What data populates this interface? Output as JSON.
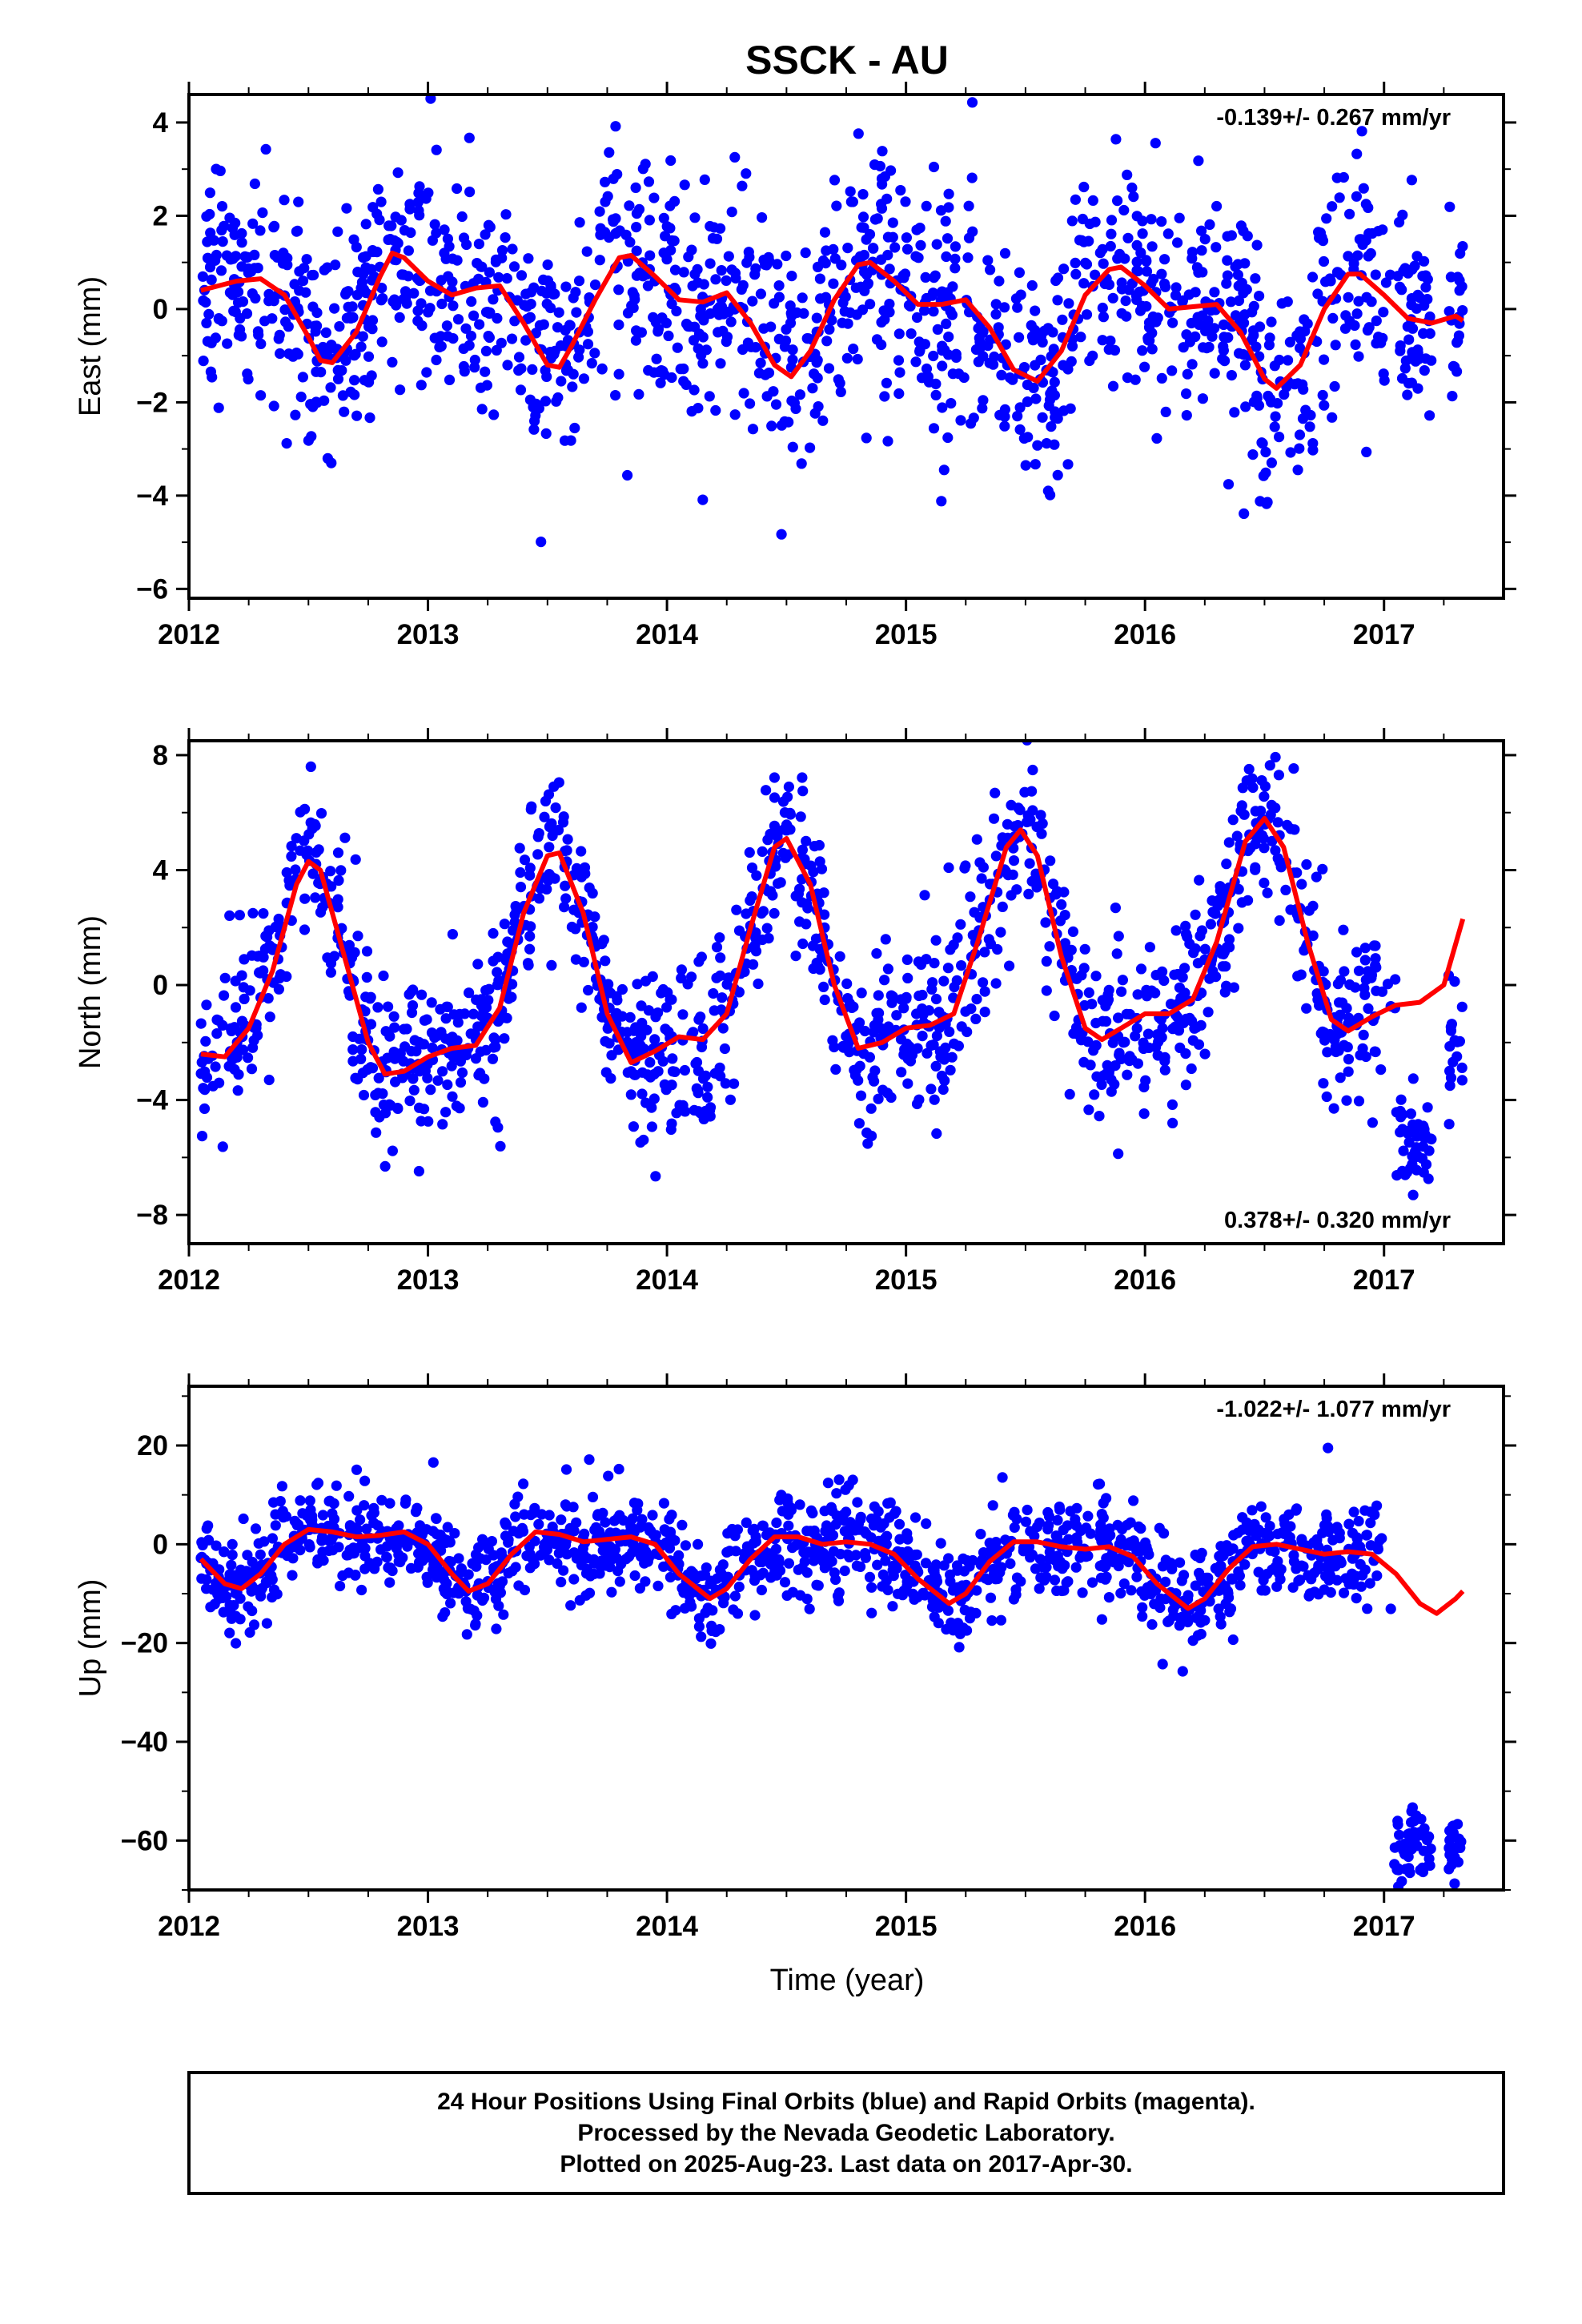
{
  "header": {
    "title": "SSCK - AU"
  },
  "colors": {
    "points": "#0000ff",
    "fit": "#ff0000",
    "frame": "#000000"
  },
  "chart_data": [
    {
      "type": "scatter",
      "ylabel": "East (mm)",
      "xlabel": "",
      "xlim": [
        2012,
        2017.5
      ],
      "ylim": [
        -6.2,
        4.6
      ],
      "xticks": [
        "2012",
        "2013",
        "2014",
        "2015",
        "2016",
        "2017"
      ],
      "yticks": [
        4,
        2,
        0,
        -2,
        -4,
        -6
      ],
      "yticklabels": [
        "4",
        "2",
        "0",
        "−2",
        "−4",
        "−6"
      ],
      "rate_label": "-0.139+/- 0.267 mm/yr",
      "rate_position": "top-right",
      "fit_curve": [
        [
          2012.05,
          0.4
        ],
        [
          2012.2,
          0.6
        ],
        [
          2012.3,
          0.65
        ],
        [
          2012.4,
          0.3
        ],
        [
          2012.5,
          -0.6
        ],
        [
          2012.55,
          -1.1
        ],
        [
          2012.6,
          -1.15
        ],
        [
          2012.7,
          -0.5
        ],
        [
          2012.8,
          0.7
        ],
        [
          2012.85,
          1.2
        ],
        [
          2012.9,
          1.1
        ],
        [
          2013.0,
          0.6
        ],
        [
          2013.1,
          0.3
        ],
        [
          2013.2,
          0.45
        ],
        [
          2013.3,
          0.5
        ],
        [
          2013.4,
          -0.3
        ],
        [
          2013.5,
          -1.2
        ],
        [
          2013.55,
          -1.25
        ],
        [
          2013.6,
          -0.8
        ],
        [
          2013.7,
          0.2
        ],
        [
          2013.8,
          1.1
        ],
        [
          2013.85,
          1.15
        ],
        [
          2013.95,
          0.7
        ],
        [
          2014.05,
          0.2
        ],
        [
          2014.15,
          0.15
        ],
        [
          2014.25,
          0.35
        ],
        [
          2014.35,
          -0.3
        ],
        [
          2014.45,
          -1.2
        ],
        [
          2014.52,
          -1.45
        ],
        [
          2014.6,
          -0.9
        ],
        [
          2014.7,
          0.2
        ],
        [
          2014.8,
          0.95
        ],
        [
          2014.85,
          1.0
        ],
        [
          2014.95,
          0.6
        ],
        [
          2015.05,
          0.1
        ],
        [
          2015.15,
          0.1
        ],
        [
          2015.25,
          0.2
        ],
        [
          2015.35,
          -0.4
        ],
        [
          2015.45,
          -1.3
        ],
        [
          2015.55,
          -1.55
        ],
        [
          2015.65,
          -0.9
        ],
        [
          2015.75,
          0.3
        ],
        [
          2015.85,
          0.85
        ],
        [
          2015.9,
          0.9
        ],
        [
          2016.0,
          0.5
        ],
        [
          2016.1,
          0.0
        ],
        [
          2016.2,
          0.05
        ],
        [
          2016.3,
          0.1
        ],
        [
          2016.4,
          -0.5
        ],
        [
          2016.5,
          -1.5
        ],
        [
          2016.55,
          -1.7
        ],
        [
          2016.65,
          -1.2
        ],
        [
          2016.75,
          0.0
        ],
        [
          2016.85,
          0.75
        ],
        [
          2016.9,
          0.75
        ],
        [
          2017.0,
          0.3
        ],
        [
          2017.1,
          -0.2
        ],
        [
          2017.2,
          -0.3
        ],
        [
          2017.3,
          -0.15
        ],
        [
          2017.33,
          -0.25
        ]
      ]
    },
    {
      "type": "scatter",
      "ylabel": "North (mm)",
      "xlabel": "",
      "xlim": [
        2012,
        2017.5
      ],
      "ylim": [
        -9.0,
        8.5
      ],
      "xticks": [
        "2012",
        "2013",
        "2014",
        "2015",
        "2016",
        "2017"
      ],
      "yticks": [
        8,
        4,
        0,
        -4,
        -8
      ],
      "yticklabels": [
        "8",
        "4",
        "0",
        "−4",
        "−8"
      ],
      "rate_label": "0.378+/- 0.320 mm/yr",
      "rate_position": "bottom-right",
      "fit_curve": [
        [
          2012.05,
          -2.4
        ],
        [
          2012.15,
          -2.5
        ],
        [
          2012.25,
          -1.5
        ],
        [
          2012.35,
          0.5
        ],
        [
          2012.45,
          3.5
        ],
        [
          2012.5,
          4.3
        ],
        [
          2012.55,
          4.0
        ],
        [
          2012.65,
          1.0
        ],
        [
          2012.75,
          -2.0
        ],
        [
          2012.82,
          -3.1
        ],
        [
          2012.9,
          -3.0
        ],
        [
          2013.0,
          -2.5
        ],
        [
          2013.1,
          -2.2
        ],
        [
          2013.2,
          -2.1
        ],
        [
          2013.3,
          -0.8
        ],
        [
          2013.4,
          2.5
        ],
        [
          2013.5,
          4.5
        ],
        [
          2013.55,
          4.6
        ],
        [
          2013.65,
          2.5
        ],
        [
          2013.75,
          -1.0
        ],
        [
          2013.85,
          -2.7
        ],
        [
          2013.95,
          -2.3
        ],
        [
          2014.05,
          -1.8
        ],
        [
          2014.15,
          -1.9
        ],
        [
          2014.25,
          -1.0
        ],
        [
          2014.35,
          2.0
        ],
        [
          2014.45,
          4.8
        ],
        [
          2014.5,
          5.1
        ],
        [
          2014.6,
          3.5
        ],
        [
          2014.7,
          0.0
        ],
        [
          2014.8,
          -2.2
        ],
        [
          2014.9,
          -2.0
        ],
        [
          2015.0,
          -1.5
        ],
        [
          2015.1,
          -1.4
        ],
        [
          2015.2,
          -1.0
        ],
        [
          2015.3,
          1.5
        ],
        [
          2015.42,
          4.8
        ],
        [
          2015.48,
          5.4
        ],
        [
          2015.55,
          4.5
        ],
        [
          2015.65,
          1.0
        ],
        [
          2015.75,
          -1.5
        ],
        [
          2015.82,
          -1.9
        ],
        [
          2015.9,
          -1.5
        ],
        [
          2016.0,
          -1.0
        ],
        [
          2016.1,
          -1.0
        ],
        [
          2016.2,
          -0.5
        ],
        [
          2016.3,
          1.5
        ],
        [
          2016.42,
          5.0
        ],
        [
          2016.5,
          5.8
        ],
        [
          2016.58,
          4.8
        ],
        [
          2016.68,
          1.5
        ],
        [
          2016.78,
          -1.2
        ],
        [
          2016.85,
          -1.6
        ],
        [
          2016.95,
          -1.1
        ],
        [
          2017.05,
          -0.7
        ],
        [
          2017.15,
          -0.6
        ],
        [
          2017.25,
          0.0
        ],
        [
          2017.33,
          2.3
        ]
      ]
    },
    {
      "type": "scatter",
      "ylabel": "Up (mm)",
      "xlabel": "Time (year)",
      "xlim": [
        2012,
        2017.5
      ],
      "ylim": [
        -70,
        32
      ],
      "xticks": [
        "2012",
        "2013",
        "2014",
        "2015",
        "2016",
        "2017"
      ],
      "yticks": [
        20,
        0,
        -20,
        -40,
        -60
      ],
      "yticklabels": [
        "20",
        "0",
        "−20",
        "−40",
        "−60"
      ],
      "rate_label": "-1.022+/- 1.077 mm/yr",
      "rate_position": "top-right",
      "fit_curve": [
        [
          2012.05,
          -3.0
        ],
        [
          2012.15,
          -8.0
        ],
        [
          2012.22,
          -9.0
        ],
        [
          2012.3,
          -6.0
        ],
        [
          2012.4,
          0.0
        ],
        [
          2012.5,
          3.0
        ],
        [
          2012.6,
          2.5
        ],
        [
          2012.7,
          1.5
        ],
        [
          2012.8,
          1.8
        ],
        [
          2012.9,
          2.5
        ],
        [
          2013.0,
          0.0
        ],
        [
          2013.1,
          -6.0
        ],
        [
          2013.17,
          -9.5
        ],
        [
          2013.25,
          -8.0
        ],
        [
          2013.35,
          -2.0
        ],
        [
          2013.45,
          2.5
        ],
        [
          2013.55,
          2.0
        ],
        [
          2013.65,
          0.5
        ],
        [
          2013.75,
          1.0
        ],
        [
          2013.85,
          1.5
        ],
        [
          2013.95,
          0.0
        ],
        [
          2014.05,
          -6.0
        ],
        [
          2014.18,
          -11.0
        ],
        [
          2014.25,
          -9.0
        ],
        [
          2014.35,
          -3.0
        ],
        [
          2014.45,
          1.5
        ],
        [
          2014.55,
          1.5
        ],
        [
          2014.65,
          0.0
        ],
        [
          2014.75,
          0.5
        ],
        [
          2014.85,
          0.0
        ],
        [
          2014.95,
          -2.0
        ],
        [
          2015.05,
          -7.0
        ],
        [
          2015.18,
          -12.0
        ],
        [
          2015.25,
          -10.0
        ],
        [
          2015.35,
          -3.5
        ],
        [
          2015.45,
          0.5
        ],
        [
          2015.55,
          0.5
        ],
        [
          2015.65,
          -0.5
        ],
        [
          2015.75,
          -1.0
        ],
        [
          2015.85,
          -0.5
        ],
        [
          2015.95,
          -2.5
        ],
        [
          2016.05,
          -8.0
        ],
        [
          2016.18,
          -13.0
        ],
        [
          2016.25,
          -11.0
        ],
        [
          2016.35,
          -5.0
        ],
        [
          2016.45,
          -0.5
        ],
        [
          2016.55,
          0.0
        ],
        [
          2016.65,
          -1.0
        ],
        [
          2016.75,
          -2.0
        ],
        [
          2016.85,
          -1.5
        ],
        [
          2016.95,
          -2.0
        ],
        [
          2017.05,
          -6.0
        ],
        [
          2017.15,
          -12.0
        ],
        [
          2017.22,
          -14.0
        ],
        [
          2017.3,
          -11.0
        ],
        [
          2017.33,
          -9.5
        ]
      ]
    }
  ],
  "footer": {
    "line1": "24 Hour Positions Using Final Orbits (blue) and Rapid Orbits (magenta).",
    "line2": "Processed by the Nevada Geodetic Laboratory.",
    "line3": "Plotted on 2025-Aug-23. Last data on 2017-Apr-30."
  }
}
